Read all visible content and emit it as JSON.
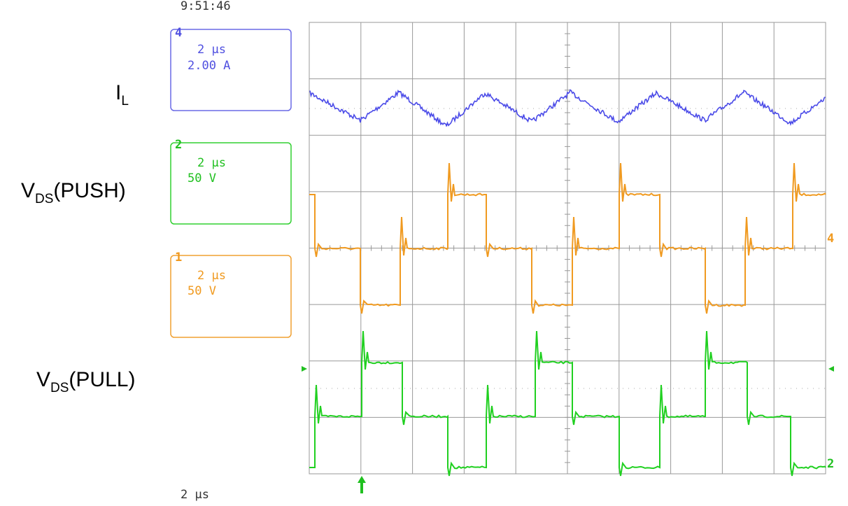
{
  "timestamp": "9:51:46",
  "timebase": "2 µs",
  "channels": [
    {
      "number": "4",
      "timebase": "2 µs",
      "scale": "2.00 A"
    },
    {
      "number": "2",
      "timebase": "2 µs",
      "scale": "50 V"
    },
    {
      "number": "1",
      "timebase": "2 µs",
      "scale": "50 V"
    }
  ],
  "signal_labels": [
    {
      "main": "I",
      "sub": "L"
    },
    {
      "main": "V",
      "sub": "DS",
      "suffix": "(PUSH)"
    },
    {
      "main": "V",
      "sub": "DS",
      "suffix": "(PULL)"
    }
  ],
  "markers": {
    "right_top": "4",
    "right_bottom": "2"
  }
}
